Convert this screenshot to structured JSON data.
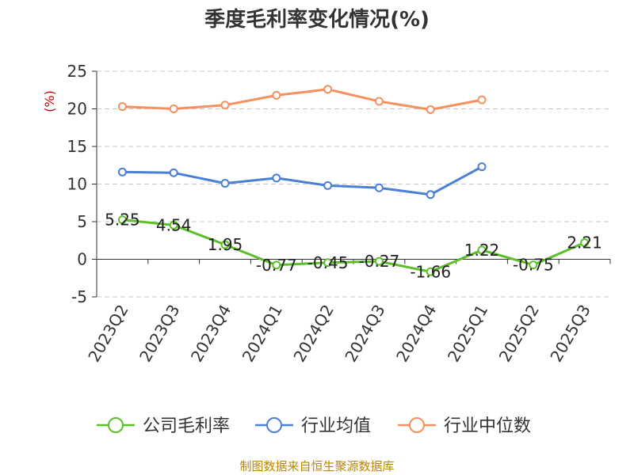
{
  "chart_data": {
    "type": "line",
    "title": "季度毛利率变化情况(%)",
    "ylabel": "(%)",
    "ylim": [
      -5,
      25
    ],
    "yticks": [
      -5,
      0,
      5,
      10,
      15,
      20,
      25
    ],
    "grid": true,
    "legend_position": "bottom",
    "categories": [
      "2023Q2",
      "2023Q3",
      "2023Q4",
      "2024Q1",
      "2024Q2",
      "2024Q3",
      "2024Q4",
      "2025Q1",
      "2025Q2",
      "2025Q3"
    ],
    "series": [
      {
        "name": "公司毛利率",
        "color": "#5cbf2a",
        "values": [
          5.25,
          4.54,
          1.95,
          -0.77,
          -0.45,
          -0.27,
          -1.66,
          1.22,
          -0.75,
          2.21
        ],
        "labels": [
          "5.25",
          "4.54",
          "1.95",
          "-0.77",
          "-0.45",
          "-0.27",
          "-1.66",
          "1.22",
          "-0.75",
          "2.21"
        ]
      },
      {
        "name": "行业均值",
        "color": "#4a7fd6",
        "values": [
          11.6,
          11.5,
          10.1,
          10.8,
          9.8,
          9.5,
          8.6,
          12.3,
          null,
          null
        ]
      },
      {
        "name": "行业中位数",
        "color": "#f4915e",
        "values": [
          20.3,
          20.0,
          20.5,
          21.8,
          22.6,
          21.0,
          19.9,
          21.2,
          null,
          null
        ]
      }
    ],
    "source": "制图数据来自恒生聚源数据库"
  }
}
